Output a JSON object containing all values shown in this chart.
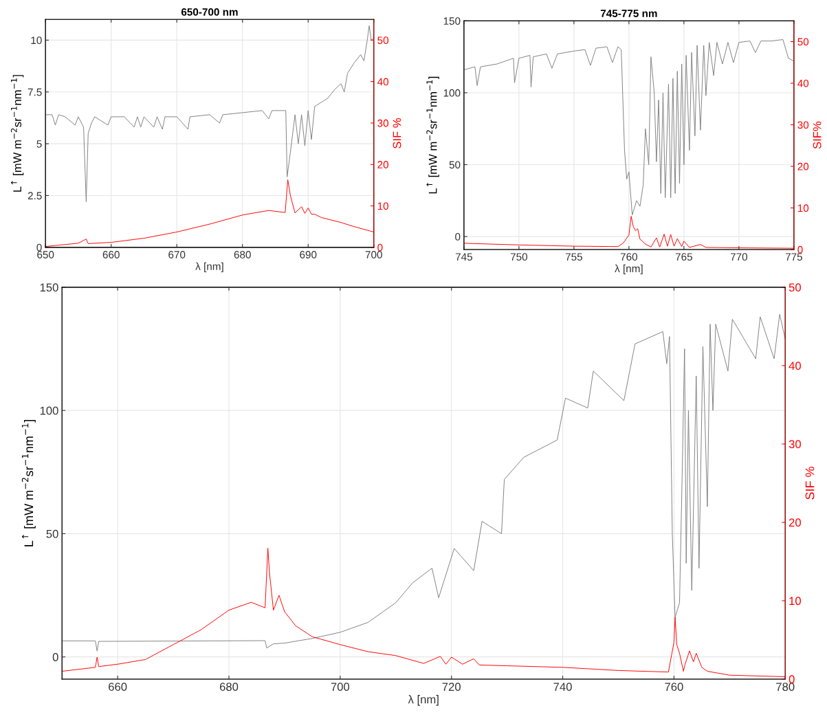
{
  "chart_data": [
    {
      "type": "line",
      "title": "650-700 nm",
      "xlabel": "λ [nm]",
      "ylabel": "L$^{↑}$ [mW m$^{−2}$sr$^{−1}$nm$^{−1}$]",
      "y2label": "SIF %",
      "xlim": [
        650,
        700
      ],
      "xticks": [
        650,
        660,
        670,
        680,
        690,
        700
      ],
      "ylim": [
        0,
        11
      ],
      "yticks": [
        0,
        2.5,
        5,
        7.5,
        10
      ],
      "y2lim": [
        0,
        55
      ],
      "y2ticks": [
        0,
        10,
        20,
        30,
        40,
        50
      ],
      "grid": true,
      "series": [
        {
          "color": "#808080",
          "x": [
            650,
            651,
            651.5,
            652,
            653,
            654.5,
            655,
            655.8,
            656.2,
            656.5,
            657,
            657.5,
            659.5,
            660,
            662,
            663.5,
            664,
            664.5,
            665,
            666.5,
            667,
            667.8,
            668.2,
            670,
            671.7,
            672,
            675,
            676.5,
            677,
            680,
            683,
            684,
            684.5,
            686,
            686.6,
            686.8,
            687.3,
            688,
            688.5,
            689,
            689.5,
            690,
            690.5,
            691,
            692,
            693,
            694,
            695,
            695.5,
            696,
            697,
            698,
            698.5,
            699,
            699.3,
            699.6,
            700
          ],
          "values": [
            6.4,
            6.4,
            5.9,
            6.4,
            6.3,
            5.9,
            6.3,
            5.8,
            2.2,
            5.5,
            6.0,
            6.3,
            5.9,
            6.3,
            6.3,
            5.8,
            6.3,
            5.8,
            6.3,
            5.8,
            6.3,
            5.7,
            6.3,
            6.3,
            5.7,
            6.3,
            6.4,
            6.0,
            6.4,
            6.5,
            6.6,
            6.2,
            6.6,
            6.6,
            6.6,
            3.4,
            4.6,
            6.4,
            5.0,
            6.4,
            4.9,
            6.6,
            5.2,
            6.8,
            7.0,
            7.2,
            7.6,
            7.9,
            7.5,
            8.4,
            8.9,
            9.3,
            9.0,
            10.0,
            10.7,
            10.0,
            10.1
          ]
        },
        {
          "color": "#ff0000",
          "axis": "y2",
          "x": [
            650,
            655,
            656.2,
            656.5,
            660,
            665,
            670,
            675,
            680,
            684,
            686.5,
            686.9,
            687.3,
            688,
            689,
            689.5,
            690,
            690.5,
            691,
            692,
            695,
            697,
            700
          ],
          "values": [
            0.2,
            1.0,
            2.0,
            0.9,
            1.2,
            2.2,
            3.7,
            5.6,
            7.8,
            8.9,
            8.4,
            16.3,
            12.5,
            8.3,
            9.8,
            8.2,
            9.5,
            8.0,
            8.0,
            7.2,
            6.0,
            5.0,
            3.7
          ]
        }
      ]
    },
    {
      "type": "line",
      "title": "745-775 nm",
      "xlabel": "λ [nm]",
      "ylabel": "L$^{↑}$ [mW m$^{−2}$sr$^{−1}$nm$^{−1}$]",
      "y2label": "SIF%",
      "xlim": [
        745,
        775
      ],
      "xticks": [
        745,
        750,
        755,
        760,
        765,
        770,
        775
      ],
      "ylim": [
        -9,
        150
      ],
      "yticks": [
        0,
        50,
        100,
        150
      ],
      "y2lim": [
        0,
        55
      ],
      "y2ticks": [
        0,
        10,
        20,
        30,
        40,
        50
      ],
      "grid": true,
      "series": [
        {
          "color": "#808080",
          "x": [
            745,
            746,
            746.2,
            746.5,
            748,
            749.5,
            749.6,
            750,
            751,
            751.1,
            751.3,
            752.5,
            753,
            753.5,
            755,
            756,
            756.5,
            757,
            758,
            758.5,
            759,
            759.3,
            759.6,
            759.8,
            760,
            760.3,
            760.7,
            761,
            761.3,
            761.5,
            761.8,
            762,
            762.3,
            762.5,
            762.7,
            762.9,
            763.1,
            763.3,
            763.6,
            763.8,
            764,
            764.2,
            764.4,
            764.6,
            764.8,
            765,
            765.2,
            765.5,
            765.7,
            766,
            766.2,
            766.5,
            766.8,
            767,
            767.3,
            767.7,
            768,
            768.5,
            769,
            769.5,
            770,
            771,
            771.5,
            772,
            773,
            774,
            774.5,
            775
          ],
          "values": [
            116,
            118,
            105,
            118,
            120,
            124,
            107,
            124,
            126,
            104,
            125,
            127,
            117,
            127,
            129,
            130,
            119,
            131,
            132,
            121,
            132,
            130,
            60,
            40,
            45,
            15,
            25,
            21,
            36,
            75,
            50,
            125,
            100,
            52,
            95,
            30,
            100,
            27,
            106,
            27,
            110,
            30,
            115,
            37,
            120,
            50,
            126,
            60,
            128,
            70,
            133,
            74,
            133,
            98,
            135,
            112,
            135,
            120,
            135,
            121,
            135,
            136,
            128,
            136,
            136,
            137,
            124,
            122
          ]
        },
        {
          "color": "#ff0000",
          "axis": "y2",
          "x": [
            745,
            750,
            755,
            759,
            759.5,
            760,
            760.2,
            760.4,
            760.6,
            760.8,
            761,
            761.5,
            762,
            762.5,
            762.8,
            763.2,
            763.5,
            763.8,
            764.1,
            764.4,
            764.8,
            765,
            765.5,
            766.5,
            767,
            770,
            775
          ],
          "values": [
            1.5,
            1.1,
            0.8,
            0.7,
            1.6,
            3.5,
            8.0,
            5.5,
            4.5,
            5.0,
            2.5,
            1.3,
            0.6,
            2.8,
            0.6,
            3.7,
            0.8,
            3.6,
            0.8,
            2.6,
            0.7,
            2.0,
            0.5,
            1.2,
            0.5,
            0.4,
            0.3
          ]
        }
      ]
    },
    {
      "type": "line",
      "xlabel": "λ [nm]",
      "ylabel": "L$^{↑}$ [mW m$^{−2}$sr$^{−1}$nm$^{−1}$]",
      "y2label": "SIF %",
      "xlim": [
        650,
        780
      ],
      "xticks": [
        660,
        680,
        700,
        720,
        740,
        760,
        780
      ],
      "ylim": [
        -9,
        150
      ],
      "yticks": [
        0,
        50,
        100,
        150
      ],
      "y2lim": [
        0,
        50
      ],
      "y2ticks": [
        0,
        10,
        20,
        30,
        40,
        50
      ],
      "grid": true,
      "series": [
        {
          "color": "#808080",
          "x": [
            650,
            656,
            656.3,
            656.6,
            686.5,
            686.8,
            688,
            690,
            695,
            700,
            705,
            710,
            713,
            716.5,
            717.7,
            720.5,
            724,
            725.5,
            729,
            729.5,
            733,
            739,
            740.5,
            744.5,
            745.5,
            751,
            753,
            758,
            758.7,
            759.2,
            759.7,
            760.2,
            761,
            761.5,
            761.9,
            762.2,
            762.6,
            763.2,
            764,
            764.5,
            765.2,
            766,
            766.5,
            767,
            767.5,
            769.7,
            770.5,
            774.7,
            775.5,
            778,
            779,
            780
          ],
          "values": [
            6.5,
            6.5,
            2.4,
            6.3,
            6.6,
            3.6,
            5.3,
            5.6,
            7.5,
            10,
            14,
            22,
            30,
            36,
            24,
            44,
            35,
            55,
            50,
            72,
            81,
            88,
            105,
            101,
            116,
            104,
            127,
            132,
            119,
            130,
            50,
            16,
            22,
            77,
            125,
            38,
            100,
            27,
            114,
            36,
            126,
            61,
            135,
            100,
            135,
            116,
            137,
            121,
            138,
            121,
            139,
            129
          ]
        },
        {
          "color": "#ff0000",
          "axis": "y2",
          "x": [
            650,
            656,
            656.3,
            656.6,
            660,
            665,
            670,
            675,
            680,
            684,
            686.5,
            687,
            687.3,
            688,
            689,
            690,
            692,
            695,
            700,
            705,
            710,
            715,
            718,
            719,
            720,
            722,
            724,
            725,
            730,
            740,
            750,
            759,
            760,
            760.2,
            760.5,
            761,
            761.7,
            762,
            762.8,
            763.5,
            764,
            765,
            766,
            770,
            780
          ],
          "values": [
            1.0,
            1.5,
            2.8,
            1.6,
            1.9,
            2.5,
            4.4,
            6.3,
            8.8,
            9.8,
            9.1,
            16.7,
            13.5,
            8.8,
            10.7,
            8.6,
            6.8,
            5.4,
            4.4,
            3.5,
            3.0,
            2.0,
            2.9,
            1.9,
            2.8,
            1.9,
            2.6,
            1.8,
            1.7,
            1.5,
            1.1,
            0.9,
            4.7,
            7.9,
            4.4,
            3.3,
            1.0,
            1.9,
            3.6,
            2.2,
            3.3,
            1.5,
            1.0,
            0.5,
            0.3
          ]
        }
      ]
    }
  ]
}
